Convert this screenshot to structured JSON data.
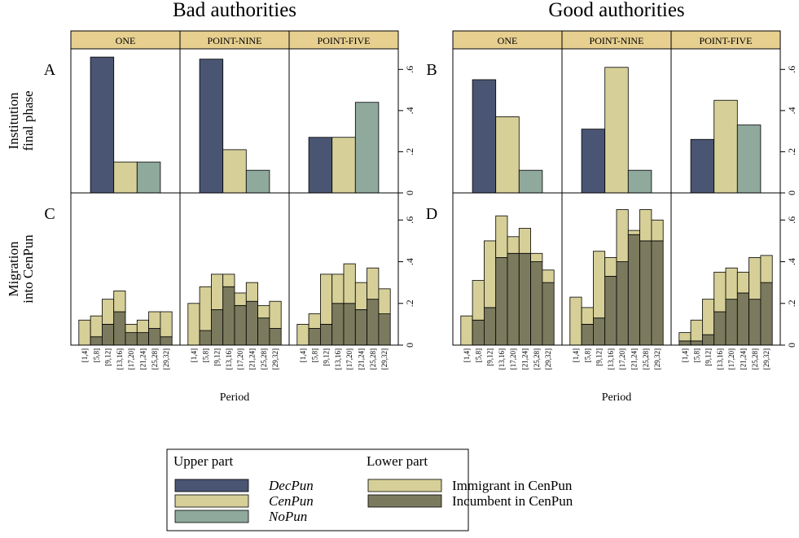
{
  "chart_data": [
    {
      "type": "bar",
      "title": "Bad authorities",
      "strips": [
        "ONE",
        "POINT-NINE",
        "POINT-FIVE"
      ],
      "xlabel": "Period",
      "categories": [
        "[1,4]",
        "[5,8]",
        "[9,12]",
        "[13,16]",
        "[17,20]",
        "[21,24]",
        "[25,28]",
        "[29,32]"
      ],
      "upper": {
        "panel_label": "A",
        "ylabel": [
          "Institution",
          "final phase"
        ],
        "legend_title": "Upper part",
        "ylim": [
          0,
          0.7
        ],
        "yticks": [
          0,
          {
            "value": 0.2,
            "label": ".2"
          },
          {
            "value": 0.4,
            "label": ".4"
          },
          {
            "value": 0.6,
            "label": ".6"
          }
        ],
        "series": [
          {
            "name": "DecPun",
            "color": "#4a5573",
            "values": [
              0.66,
              0.65,
              0.27
            ]
          },
          {
            "name": "CenPun",
            "color": "#d6cf98",
            "values": [
              0.15,
              0.21,
              0.27
            ]
          },
          {
            "name": "NoPun",
            "color": "#8fa99c",
            "values": [
              0.15,
              0.11,
              0.44
            ]
          }
        ]
      },
      "lower": {
        "panel_label": "C",
        "ylabel": [
          "Migration",
          "into CenPun"
        ],
        "legend_title": "Lower part",
        "ylim": [
          0,
          0.73
        ],
        "yticks": [
          0,
          {
            "value": 0.2,
            "label": ".2"
          },
          {
            "value": 0.4,
            "label": ".4"
          },
          {
            "value": 0.6,
            "label": ".6"
          }
        ],
        "series": [
          {
            "name": "Immigrant in CenPun",
            "color": "#d6cf98",
            "values": [
              [
                0.12,
                0.1,
                0.12,
                0.1,
                0.04,
                0.06,
                0.08,
                0.12
              ],
              [
                0.2,
                0.21,
                0.17,
                0.06,
                0.06,
                0.09,
                0.06,
                0.13
              ],
              [
                0.1,
                0.07,
                0.24,
                0.14,
                0.19,
                0.13,
                0.15,
                0.12
              ]
            ]
          },
          {
            "name": "Incumbent in CenPun",
            "color": "#7b7a5e",
            "values": [
              [
                0,
                0.04,
                0.1,
                0.16,
                0.06,
                0.06,
                0.08,
                0.04
              ],
              [
                0,
                0.07,
                0.17,
                0.28,
                0.19,
                0.21,
                0.13,
                0.08
              ],
              [
                0,
                0.08,
                0.1,
                0.2,
                0.2,
                0.17,
                0.22,
                0.15
              ]
            ]
          }
        ]
      }
    },
    {
      "type": "bar",
      "title": "Good authorities",
      "strips": [
        "ONE",
        "POINT-NINE",
        "POINT-FIVE"
      ],
      "xlabel": "Period",
      "categories": [
        "[1,4]",
        "[5,8]",
        "[9,12]",
        "[13,16]",
        "[17,20]",
        "[21,24]",
        "[25,28]",
        "[29,32]"
      ],
      "upper": {
        "panel_label": "B",
        "ylim": [
          0,
          0.7
        ],
        "yticks": [
          0,
          {
            "value": 0.2,
            "label": ".2"
          },
          {
            "value": 0.4,
            "label": ".4"
          },
          {
            "value": 0.6,
            "label": ".6"
          }
        ],
        "series": [
          {
            "name": "DecPun",
            "color": "#4a5573",
            "values": [
              0.55,
              0.31,
              0.26
            ]
          },
          {
            "name": "CenPun",
            "color": "#d6cf98",
            "values": [
              0.37,
              0.61,
              0.45
            ]
          },
          {
            "name": "NoPun",
            "color": "#8fa99c",
            "values": [
              0.11,
              0.11,
              0.33
            ]
          }
        ]
      },
      "lower": {
        "panel_label": "D",
        "ylim": [
          0,
          0.73
        ],
        "yticks": [
          0,
          {
            "value": 0.2,
            "label": ".2"
          },
          {
            "value": 0.4,
            "label": ".4"
          },
          {
            "value": 0.6,
            "label": ".6"
          }
        ],
        "series": [
          {
            "name": "Immigrant in CenPun",
            "color": "#d6cf98",
            "values": [
              [
                0.14,
                0.19,
                0.32,
                0.2,
                0.08,
                0.12,
                0.04,
                0.06
              ],
              [
                0.23,
                0.08,
                0.32,
                0.09,
                0.25,
                0.02,
                0.15,
                0.1
              ],
              [
                0.04,
                0.1,
                0.17,
                0.19,
                0.15,
                0.1,
                0.2,
                0.13
              ]
            ]
          },
          {
            "name": "Incumbent in CenPun",
            "color": "#7b7a5e",
            "values": [
              [
                0,
                0.12,
                0.18,
                0.42,
                0.44,
                0.44,
                0.4,
                0.3
              ],
              [
                0,
                0.1,
                0.13,
                0.33,
                0.4,
                0.53,
                0.5,
                0.5
              ],
              [
                0.02,
                0.02,
                0.05,
                0.16,
                0.22,
                0.25,
                0.22,
                0.3
              ]
            ]
          }
        ]
      }
    }
  ]
}
